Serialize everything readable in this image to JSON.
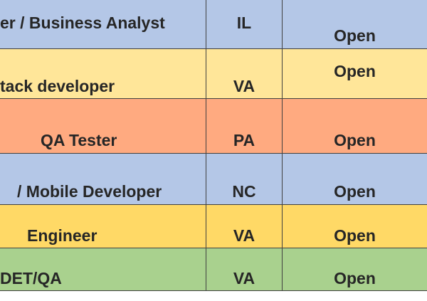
{
  "table": {
    "rows": [
      [
        "er / Business Analyst",
        "IL",
        "Open"
      ],
      [
        "tack developer",
        "VA",
        "Open"
      ],
      [
        "QA Tester",
        "PA",
        "Open"
      ],
      [
        "/ Mobile Developer",
        "NC",
        "Open"
      ],
      [
        "Engineer",
        "VA",
        "Open"
      ],
      [
        "DET/QA",
        "VA",
        "Open"
      ]
    ]
  }
}
